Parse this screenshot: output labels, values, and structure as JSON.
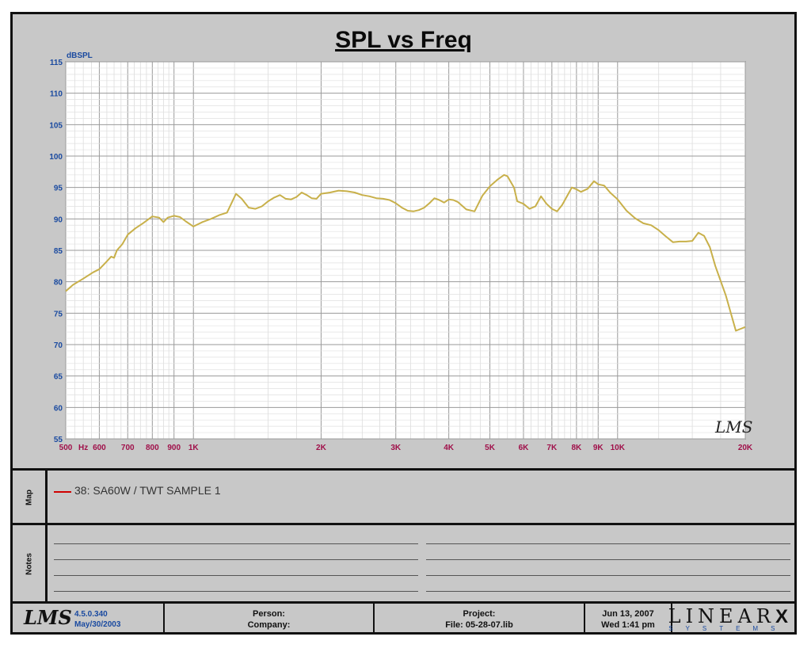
{
  "chart_data": {
    "type": "line",
    "title": "SPL vs Freq",
    "ylabel": "dBSPL",
    "xlabel": "",
    "x_scale": "log",
    "xlim": [
      500,
      20000
    ],
    "ylim": [
      55,
      115
    ],
    "yticks": [
      55,
      60,
      65,
      70,
      75,
      80,
      85,
      90,
      95,
      100,
      105,
      110,
      115
    ],
    "xtick_labels": [
      {
        "f": 500,
        "label": "500"
      },
      {
        "f": 550,
        "label": "Hz"
      },
      {
        "f": 600,
        "label": "600"
      },
      {
        "f": 700,
        "label": "700"
      },
      {
        "f": 800,
        "label": "800"
      },
      {
        "f": 900,
        "label": "900"
      },
      {
        "f": 1000,
        "label": "1K"
      },
      {
        "f": 2000,
        "label": "2K"
      },
      {
        "f": 3000,
        "label": "3K"
      },
      {
        "f": 4000,
        "label": "4K"
      },
      {
        "f": 5000,
        "label": "5K"
      },
      {
        "f": 6000,
        "label": "6K"
      },
      {
        "f": 7000,
        "label": "7K"
      },
      {
        "f": 8000,
        "label": "8K"
      },
      {
        "f": 9000,
        "label": "9K"
      },
      {
        "f": 10000,
        "label": "10K"
      },
      {
        "f": 20000,
        "label": "20K"
      }
    ],
    "grid": true,
    "series": [
      {
        "name": "38: SA60W / TWT SAMPLE 1",
        "color": "#c8b04a",
        "x": [
          500,
          520,
          550,
          580,
          600,
          620,
          640,
          650,
          660,
          680,
          700,
          730,
          760,
          800,
          830,
          850,
          870,
          900,
          930,
          960,
          1000,
          1050,
          1100,
          1150,
          1200,
          1260,
          1300,
          1350,
          1400,
          1450,
          1500,
          1550,
          1600,
          1650,
          1700,
          1750,
          1800,
          1850,
          1900,
          1950,
          2000,
          2100,
          2200,
          2300,
          2400,
          2500,
          2600,
          2700,
          2800,
          2900,
          3000,
          3100,
          3200,
          3300,
          3400,
          3500,
          3600,
          3700,
          3800,
          3900,
          4000,
          4100,
          4200,
          4400,
          4600,
          4800,
          5000,
          5200,
          5400,
          5500,
          5700,
          5800,
          6000,
          6200,
          6400,
          6600,
          6800,
          7000,
          7200,
          7400,
          7600,
          7800,
          8000,
          8200,
          8500,
          8800,
          9000,
          9300,
          9600,
          10000,
          10500,
          11000,
          11500,
          12000,
          12500,
          13000,
          13500,
          14000,
          14500,
          15000,
          15500,
          16000,
          16500,
          17000,
          18000,
          19000,
          20000
        ],
        "y": [
          78.5,
          79.5,
          80.5,
          81.5,
          82,
          83,
          84,
          83.8,
          85,
          86,
          87.5,
          88.5,
          89.3,
          90.4,
          90.2,
          89.5,
          90.2,
          90.5,
          90.3,
          89.6,
          88.8,
          89.5,
          90,
          90.6,
          91,
          94,
          93.2,
          91.8,
          91.6,
          92,
          92.8,
          93.4,
          93.8,
          93.2,
          93.1,
          93.5,
          94.2,
          93.8,
          93.3,
          93.2,
          94,
          94.2,
          94.5,
          94.4,
          94.2,
          93.8,
          93.6,
          93.3,
          93.2,
          93,
          92.5,
          91.8,
          91.3,
          91.2,
          91.4,
          91.8,
          92.5,
          93.3,
          93,
          92.6,
          93.1,
          93,
          92.7,
          91.5,
          91.2,
          93.7,
          95.2,
          96.2,
          97,
          96.8,
          95,
          92.8,
          92.4,
          91.6,
          92,
          93.6,
          92.4,
          91.6,
          91.2,
          92.2,
          93.6,
          95,
          94.7,
          94.3,
          94.8,
          96,
          95.5,
          95.3,
          94.2,
          93.1,
          91.3,
          90.1,
          89.3,
          89,
          88.2,
          87.2,
          86.3,
          86.4,
          86.4,
          86.5,
          87.8,
          87.3,
          85.5,
          82.5,
          77.8,
          72.2,
          72.8
        ]
      }
    ]
  },
  "legend": {
    "entry": "38: SA60W / TWT SAMPLE 1",
    "color": "#d00000"
  },
  "side_labels": {
    "map": "Map",
    "notes": "Notes"
  },
  "watermark": "LMS",
  "footer": {
    "logo": "LMS",
    "version": "4.5.0.340",
    "version_date": "May/30/2003",
    "person_label": "Person:",
    "company_label": "Company:",
    "project_label": "Project:",
    "file_label": "File: 05-28-07.lib",
    "date": "Jun 13, 2007",
    "time": "Wed  1:41 pm",
    "brand": "LINEAR",
    "brand_x": "X",
    "brand_sub": "SYSTEMS"
  }
}
